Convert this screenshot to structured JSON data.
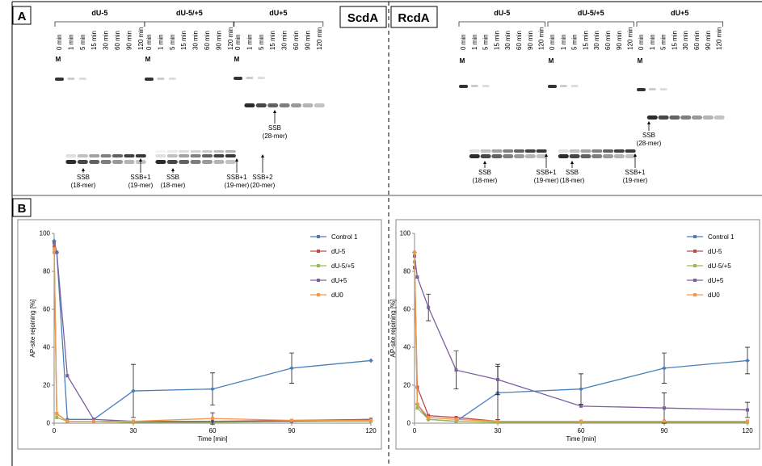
{
  "panels": {
    "a": {
      "label": "A",
      "left": {
        "title": "ScdA",
        "marker": "M",
        "groups": [
          {
            "name": "dU-5",
            "lanes": [
              "0 min",
              "1 min",
              "5 min",
              "15 min",
              "30 min",
              "60 min",
              "90 min",
              "120 min"
            ]
          },
          {
            "name": "dU-5/+5",
            "lanes": [
              "0 min",
              "1 min",
              "5 min",
              "15 min",
              "30 min",
              "60 min",
              "90 min",
              "120 min"
            ]
          },
          {
            "name": "dU+5",
            "lanes": [
              "0 min",
              "1 min",
              "5 min",
              "15 min",
              "30 min",
              "60 min",
              "90 min",
              "120 min"
            ]
          }
        ],
        "annotations": [
          {
            "lines": [
              "SSB",
              "(18-mer)"
            ]
          },
          {
            "lines": [
              "SSB+1",
              "(19-mer)"
            ]
          },
          {
            "lines": [
              "SSB",
              "(18-mer)"
            ]
          },
          {
            "lines": [
              "SSB+1",
              "(19-mer)"
            ]
          },
          {
            "lines": [
              "SSB+2",
              "(20-mer)"
            ]
          },
          {
            "lines": [
              "SSB",
              "(28-mer)"
            ]
          }
        ]
      },
      "right": {
        "title": "RcdA",
        "marker": "M",
        "groups": [
          {
            "name": "dU-5",
            "lanes": [
              "0 min",
              "1 min",
              "5 min",
              "15 min",
              "30 min",
              "60 min",
              "90 min",
              "120 min"
            ]
          },
          {
            "name": "dU-5/+5",
            "lanes": [
              "0 min",
              "1 min",
              "5 min",
              "15 min",
              "30 min",
              "60 min",
              "90 min",
              "120 min"
            ]
          },
          {
            "name": "dU+5",
            "lanes": [
              "0 min",
              "1 min",
              "5 min",
              "15 min",
              "30 min",
              "60 min",
              "90 min",
              "120 min"
            ]
          }
        ],
        "annotations": [
          {
            "lines": [
              "SSB",
              "(18-mer)"
            ]
          },
          {
            "lines": [
              "SSB+1",
              "(19-mer)"
            ]
          },
          {
            "lines": [
              "SSB",
              "(18-mer)"
            ]
          },
          {
            "lines": [
              "SSB+1",
              "(19-mer)"
            ]
          },
          {
            "lines": [
              "SSB",
              "(28-mer)"
            ]
          }
        ]
      }
    },
    "b": {
      "label": "B"
    }
  },
  "chart_data": [
    {
      "type": "line",
      "xlabel": "Time [min]",
      "ylabel": "AP-site rejoining [%]",
      "x": [
        0,
        1,
        5,
        15,
        30,
        60,
        90,
        120
      ],
      "xlim": [
        0,
        120
      ],
      "xticks": [
        0,
        30,
        60,
        90,
        120
      ],
      "ylim": [
        0,
        100
      ],
      "yticks": [
        0,
        20,
        40,
        60,
        80,
        100
      ],
      "legend": "upper right",
      "series": [
        {
          "name": "Control 1",
          "color": "#4a7ebb",
          "values": [
            96,
            90,
            2,
            2,
            17,
            18,
            29,
            33
          ],
          "errors": [
            null,
            null,
            null,
            null,
            14,
            8.5,
            8,
            null
          ]
        },
        {
          "name": "dU-5",
          "color": "#be4b48",
          "values": [
            93,
            5,
            1,
            1,
            0.5,
            1,
            1.5,
            2
          ],
          "errors": [
            null,
            null,
            null,
            null,
            null,
            null,
            null,
            null
          ]
        },
        {
          "name": "dU-5/+5",
          "color": "#98b954",
          "values": [
            90,
            3,
            1,
            1,
            0.5,
            0.5,
            1,
            1
          ],
          "errors": [
            null,
            null,
            null,
            null,
            null,
            null,
            null,
            null
          ]
        },
        {
          "name": "dU+5",
          "color": "#7d60a0",
          "values": [
            95,
            90,
            25,
            2,
            1,
            1,
            1,
            2
          ],
          "errors": [
            null,
            null,
            null,
            null,
            null,
            null,
            null,
            null
          ]
        },
        {
          "name": "dU0",
          "color": "#f79646",
          "values": [
            92,
            5,
            1,
            1,
            1,
            2.5,
            1.5,
            1.5
          ],
          "errors": [
            null,
            null,
            null,
            null,
            null,
            3,
            null,
            null
          ]
        }
      ]
    },
    {
      "type": "line",
      "xlabel": "Time [min]",
      "ylabel": "AP-site rejoining [%]",
      "x": [
        0,
        1,
        5,
        15,
        30,
        60,
        90,
        120
      ],
      "xlim": [
        0,
        120
      ],
      "xticks": [
        0,
        30,
        60,
        90,
        120
      ],
      "ylim": [
        0,
        100
      ],
      "yticks": [
        0,
        20,
        40,
        60,
        80,
        100
      ],
      "legend": "upper right",
      "series": [
        {
          "name": "Control 1",
          "color": "#4a7ebb",
          "values": [
            90,
            10,
            2,
            1,
            16,
            18,
            29,
            33
          ],
          "errors": [
            null,
            null,
            null,
            null,
            14,
            8,
            8,
            7
          ]
        },
        {
          "name": "dU-5",
          "color": "#be4b48",
          "values": [
            82,
            19,
            4,
            3,
            1,
            1,
            1,
            1
          ],
          "errors": [
            null,
            null,
            null,
            null,
            null,
            null,
            null,
            null
          ]
        },
        {
          "name": "dU-5/+5",
          "color": "#98b954",
          "values": [
            85,
            8,
            2,
            1,
            0.5,
            0.5,
            0.5,
            0.5
          ],
          "errors": [
            null,
            null,
            null,
            null,
            null,
            null,
            null,
            null
          ]
        },
        {
          "name": "dU+5",
          "color": "#7d60a0",
          "values": [
            88,
            77,
            61,
            28,
            23,
            9,
            8,
            7
          ],
          "errors": [
            null,
            null,
            7,
            10,
            8,
            null,
            8,
            4
          ]
        },
        {
          "name": "dU0",
          "color": "#f79646",
          "values": [
            90,
            10,
            3,
            2,
            1,
            1,
            1,
            1
          ],
          "errors": [
            null,
            null,
            null,
            null,
            null,
            null,
            null,
            null
          ]
        }
      ]
    }
  ]
}
